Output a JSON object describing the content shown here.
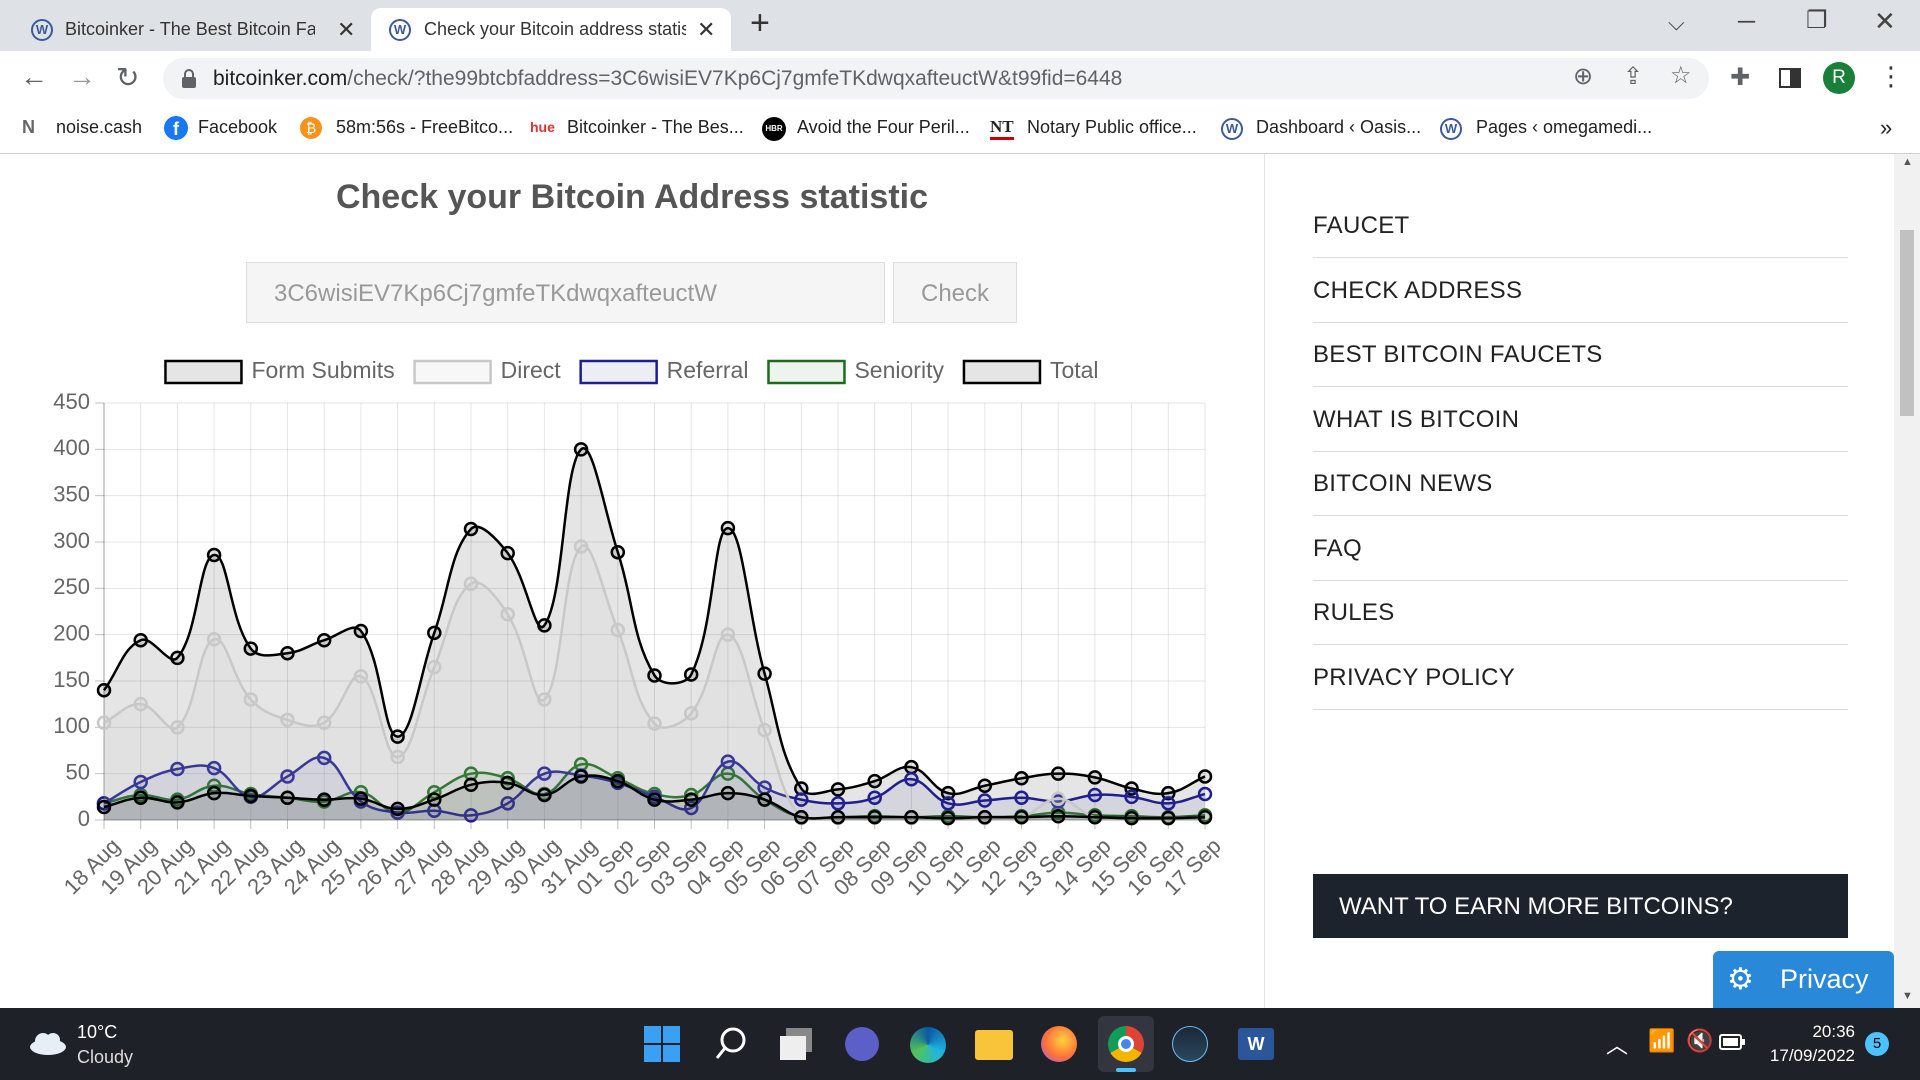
{
  "browser": {
    "tabs": [
      "Bitcoinker - The Best Bitcoin Fauc",
      "Check your Bitcoin address statis"
    ],
    "url_host": "bitcoinker.com",
    "url_path": "/check/?the99btcbfaddress=3C6wisiEV7Kp6Cj7gmfeTKdwqxafteuctW&t99fid=6448",
    "profile_initial": "R",
    "bookmarks": [
      {
        "label": "noise.cash"
      },
      {
        "label": "Facebook"
      },
      {
        "label": "58m:56s - FreeBitco..."
      },
      {
        "icon": "hue",
        "label": "Bitcoinker - The Bes..."
      },
      {
        "icon": "HBR",
        "label": "Avoid the Four Peril..."
      },
      {
        "icon": "NT",
        "label": "Notary Public office..."
      },
      {
        "label": "Dashboard ‹ Oasis..."
      },
      {
        "label": "Pages ‹ omegamedi..."
      }
    ]
  },
  "page": {
    "title": "Check your Bitcoin Address statistic",
    "address_input": "3C6wisiEV7Kp6Cj7gmfeTKdwqxafteuctW",
    "check_button": "Check",
    "menu": [
      "FAUCET",
      "CHECK ADDRESS",
      "BEST BITCOIN FAUCETS",
      "WHAT IS BITCOIN",
      "BITCOIN NEWS",
      "FAQ",
      "RULES",
      "PRIVACY POLICY"
    ],
    "promo": "WANT TO EARN MORE BITCOINS?",
    "privacy": "Privacy"
  },
  "chart_data": {
    "type": "line",
    "categories": [
      "18 Aug",
      "19 Aug",
      "20 Aug",
      "21 Aug",
      "22 Aug",
      "23 Aug",
      "24 Aug",
      "25 Aug",
      "26 Aug",
      "27 Aug",
      "28 Aug",
      "29 Aug",
      "30 Aug",
      "31 Aug",
      "01 Sep",
      "02 Sep",
      "03 Sep",
      "04 Sep",
      "05 Sep",
      "06 Sep",
      "07 Sep",
      "08 Sep",
      "09 Sep",
      "10 Sep",
      "11 Sep",
      "12 Sep",
      "13 Sep",
      "14 Sep",
      "15 Sep",
      "16 Sep",
      "17 Sep"
    ],
    "series": [
      {
        "name": "Form Submits",
        "color": "#000000",
        "fill": "rgba(0,0,0,0.10)",
        "values": [
          14,
          24,
          19,
          29,
          26,
          24,
          22,
          23,
          12,
          22,
          38,
          40,
          27,
          47,
          42,
          22,
          22,
          29,
          22,
          3,
          3,
          3,
          3,
          2,
          3,
          3,
          4,
          3,
          2,
          2,
          3
        ]
      },
      {
        "name": "Direct",
        "color": "#c8c8c8",
        "fill": "rgba(200,200,200,0.15)",
        "values": [
          105,
          125,
          100,
          195,
          130,
          108,
          105,
          155,
          68,
          165,
          255,
          222,
          130,
          295,
          205,
          104,
          115,
          200,
          97,
          2,
          2,
          3,
          2,
          2,
          2,
          3,
          23,
          3,
          2,
          2,
          3
        ]
      },
      {
        "name": "Referral",
        "color": "#1f1f8f",
        "fill": "rgba(31,31,143,0.08)",
        "values": [
          18,
          41,
          55,
          56,
          25,
          47,
          67,
          20,
          8,
          10,
          5,
          18,
          50,
          48,
          40,
          25,
          13,
          63,
          35,
          22,
          18,
          24,
          44,
          18,
          21,
          24,
          20,
          27,
          25,
          18,
          28
        ]
      },
      {
        "name": "Seniority",
        "color": "#1d6b1d",
        "fill": "rgba(29,107,29,0.08)",
        "values": [
          18,
          27,
          22,
          37,
          28,
          24,
          20,
          30,
          8,
          30,
          50,
          45,
          28,
          60,
          45,
          28,
          27,
          50,
          22,
          3,
          3,
          4,
          3,
          4,
          3,
          4,
          8,
          5,
          4,
          3,
          5
        ]
      },
      {
        "name": "Total",
        "color": "#000000",
        "fill": "rgba(0,0,0,0.10)",
        "values": [
          140,
          194,
          175,
          286,
          185,
          180,
          194,
          204,
          90,
          202,
          314,
          288,
          210,
          400,
          289,
          156,
          157,
          315,
          158,
          34,
          33,
          42,
          57,
          29,
          37,
          45,
          50,
          46,
          34,
          29,
          47
        ]
      }
    ],
    "ylim": [
      0,
      450
    ],
    "yticks": [
      0,
      50,
      100,
      150,
      200,
      250,
      300,
      350,
      400,
      450
    ],
    "grid": true,
    "legend": "top"
  },
  "taskbar": {
    "temperature": "10°C",
    "weather": "Cloudy",
    "time": "20:36",
    "date": "17/09/2022",
    "notifications": "5"
  }
}
